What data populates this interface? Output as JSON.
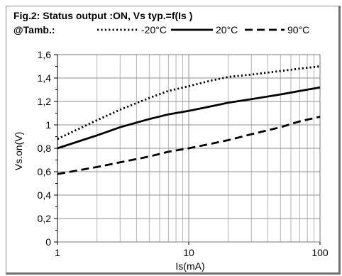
{
  "chart_data": {
    "type": "line",
    "title": "Fig.2: Status output :ON, Vs typ.=f(Is )",
    "legend_prefix": "@Tamb.:",
    "xlabel": "Is(mA)",
    "ylabel": "Vs.on(V)",
    "xscale": "log",
    "xlim": [
      1,
      100
    ],
    "ylim": [
      0,
      1.6
    ],
    "x_ticks": [
      "1",
      "10",
      "100"
    ],
    "y_ticks": [
      "0",
      "0,2",
      "0,4",
      "0,6",
      "0,8",
      "1",
      "1,2",
      "1,4",
      "1,6"
    ],
    "grid": true,
    "legend_position": "top",
    "series": [
      {
        "name": "-20°C",
        "style": "dotted",
        "color": "#000000",
        "x": [
          1,
          2,
          3,
          5,
          7,
          10,
          15,
          20,
          30,
          50,
          70,
          100
        ],
        "y": [
          0.88,
          1.04,
          1.13,
          1.23,
          1.29,
          1.33,
          1.38,
          1.41,
          1.43,
          1.46,
          1.48,
          1.5
        ]
      },
      {
        "name": "20°C",
        "style": "solid",
        "color": "#000000",
        "x": [
          1,
          2,
          3,
          5,
          7,
          10,
          15,
          20,
          30,
          50,
          70,
          100
        ],
        "y": [
          0.8,
          0.91,
          0.98,
          1.05,
          1.09,
          1.12,
          1.16,
          1.19,
          1.22,
          1.26,
          1.29,
          1.32
        ]
      },
      {
        "name": "90°C",
        "style": "dashed",
        "color": "#000000",
        "x": [
          1,
          2,
          3,
          5,
          7,
          10,
          15,
          20,
          30,
          50,
          70,
          100
        ],
        "y": [
          0.58,
          0.64,
          0.68,
          0.73,
          0.77,
          0.8,
          0.84,
          0.87,
          0.92,
          0.98,
          1.03,
          1.07
        ]
      }
    ]
  }
}
